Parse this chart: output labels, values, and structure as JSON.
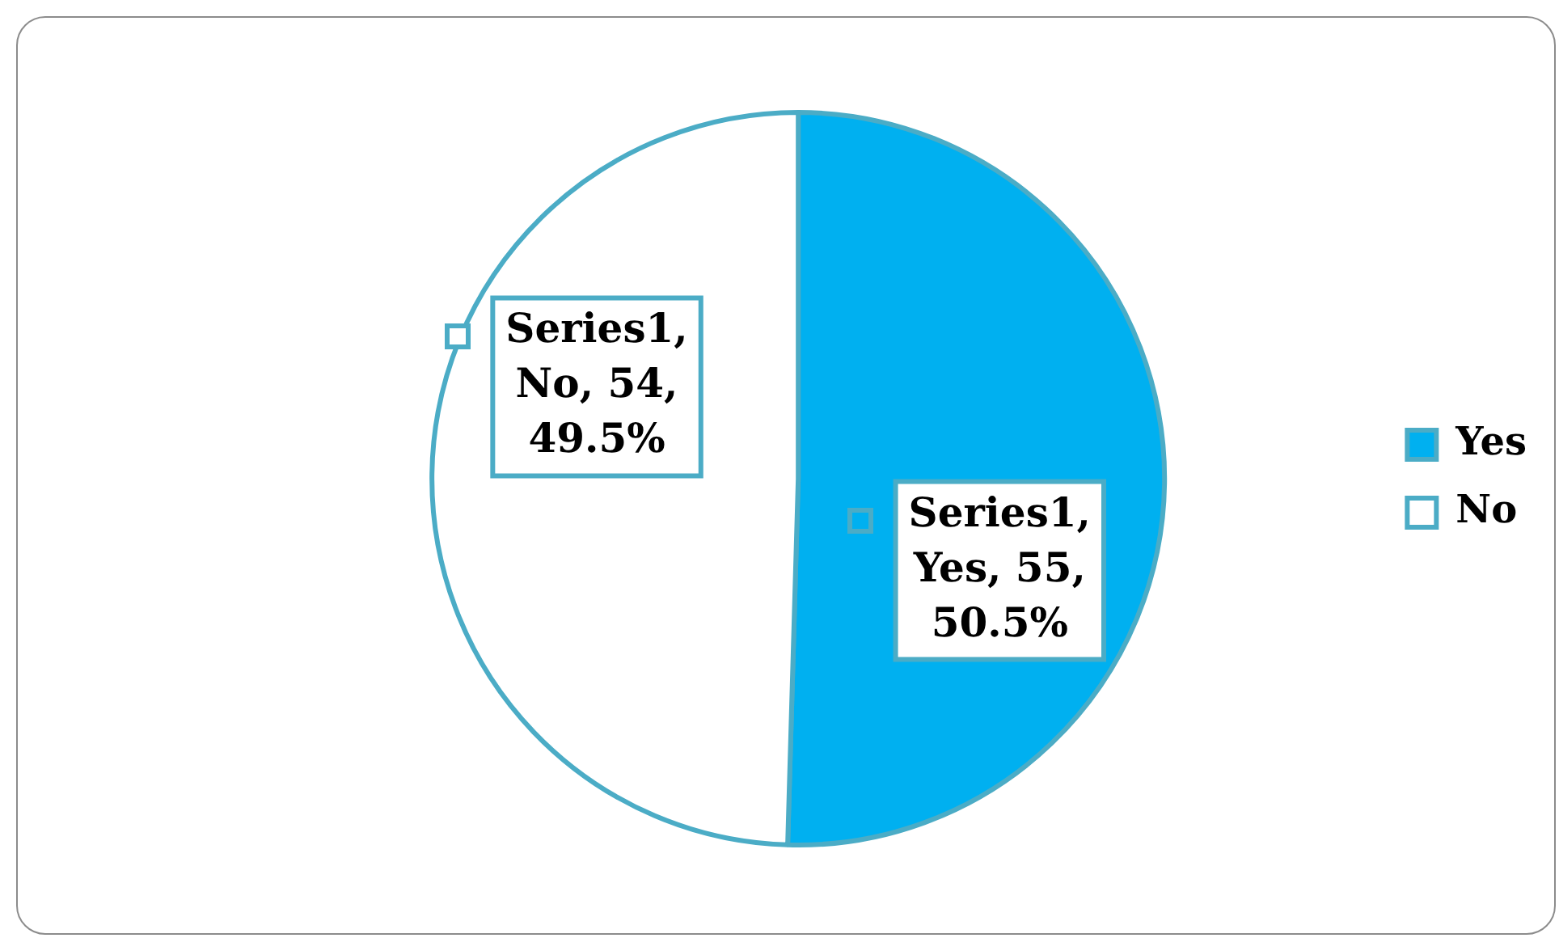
{
  "chart_data": {
    "type": "pie",
    "categories": [
      "Yes",
      "No"
    ],
    "values": [
      55,
      54
    ],
    "colors": [
      "#00b0f0",
      "#ffffff"
    ],
    "value_labels": [
      "Series1, Yes, 55, 50.5%",
      "Series1, No, 54, 49.5%"
    ],
    "legend": "right"
  }
}
